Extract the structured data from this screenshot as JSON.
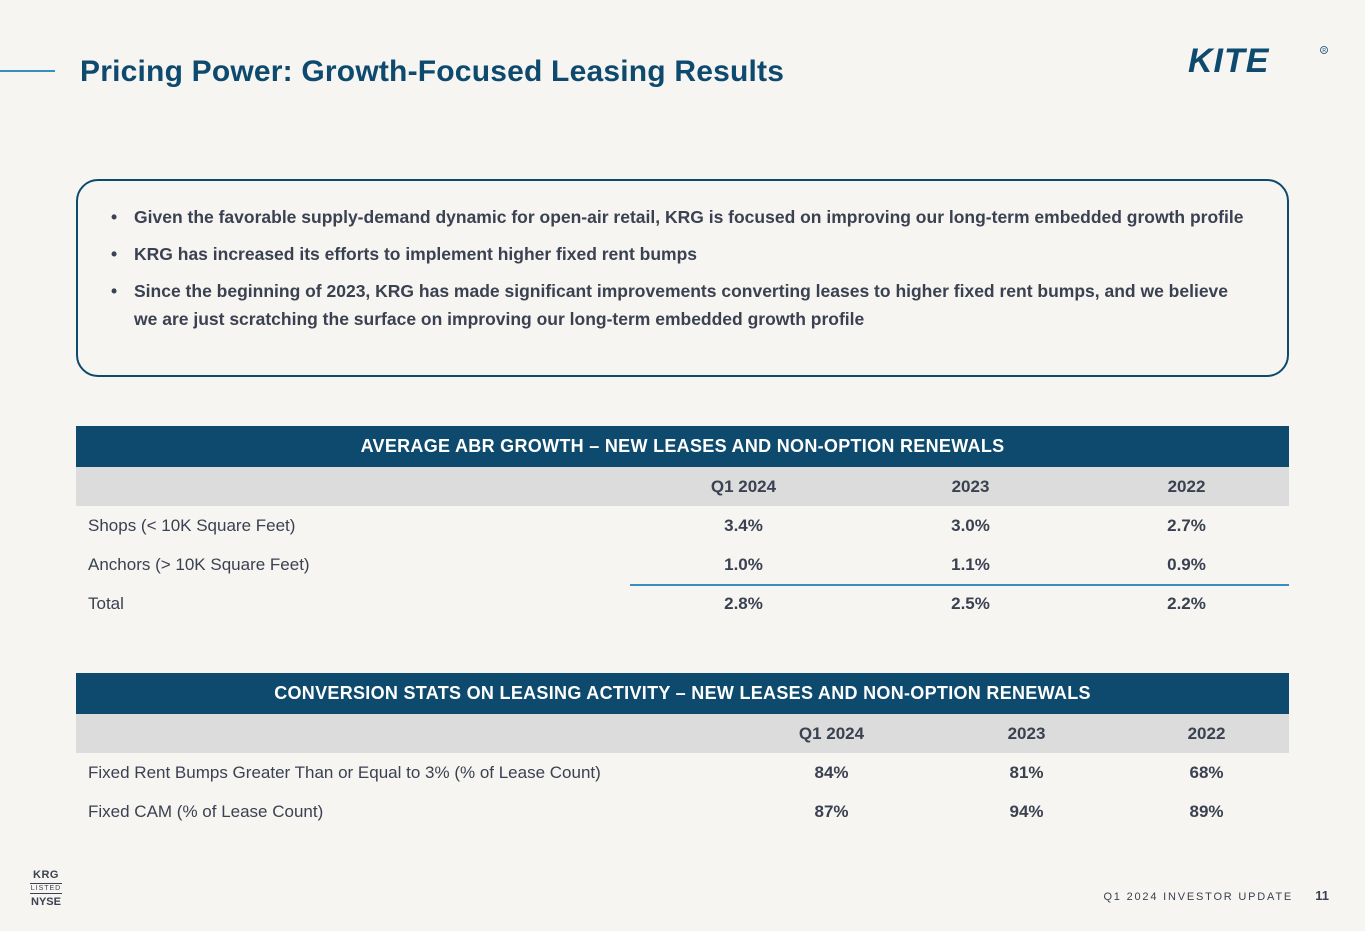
{
  "title": "Pricing Power: Growth-Focused Leasing Results",
  "logo_text": "KITE",
  "callout": {
    "bullet": "•",
    "items": [
      "Given the favorable supply-demand dynamic for open-air retail, KRG is focused on improving our long-term embedded growth profile",
      "KRG has increased its efforts to implement higher fixed rent bumps",
      "Since the beginning of 2023, KRG has made significant improvements converting leases to higher fixed rent bumps, and we believe we are just scratching the surface on improving our long-term embedded growth profile"
    ]
  },
  "table1": {
    "title": "AVERAGE ABR GROWTH – NEW LEASES AND NON-OPTION RENEWALS",
    "columns": [
      "Q1 2024",
      "2023",
      "2022"
    ],
    "rows": [
      {
        "label": "Shops (< 10K Square Feet)",
        "values": [
          "3.4%",
          "3.0%",
          "2.7%"
        ]
      },
      {
        "label": "Anchors (> 10K Square Feet)",
        "values": [
          "1.0%",
          "1.1%",
          "0.9%"
        ]
      },
      {
        "label": "Total",
        "values": [
          "2.8%",
          "2.5%",
          "2.2%"
        ]
      }
    ]
  },
  "table2": {
    "title": "CONVERSION STATS ON LEASING ACTIVITY – NEW LEASES AND NON-OPTION RENEWALS",
    "columns": [
      "Q1 2024",
      "2023",
      "2022"
    ],
    "rows": [
      {
        "label": "Fixed Rent Bumps Greater Than or Equal to 3% (% of Lease Count)",
        "values": [
          "84%",
          "81%",
          "68%"
        ]
      },
      {
        "label": "Fixed CAM (% of Lease Count)",
        "values": [
          "87%",
          "94%",
          "89%"
        ]
      }
    ]
  },
  "badge": {
    "ticker": "KRG",
    "listed": "LISTED",
    "exchange": "NYSE"
  },
  "footer": {
    "text": "Q1 2024 INVESTOR UPDATE",
    "page": "11"
  },
  "colors": {
    "navy": "#0d4a6e",
    "accent": "#3a8fc0",
    "background": "#f7f5f2"
  }
}
